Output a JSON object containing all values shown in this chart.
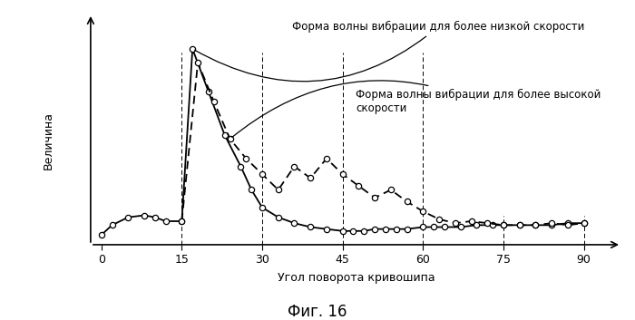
{
  "title": "Фиг. 16",
  "xlabel": "Угол поворота кривошипа",
  "ylabel": "Величина",
  "annotation1": "Форма волны вибрации для более низкой скорости",
  "annotation2": "Форма волны вибрации для более высокой\nскорости",
  "xticks": [
    0,
    15,
    30,
    45,
    60,
    75,
    90
  ],
  "xmin": -2,
  "xmax": 97,
  "ymin": 0,
  "ymax": 1.18,
  "dashed_verticals": [
    15,
    30,
    45,
    60,
    75,
    90
  ],
  "solid_x": [
    0,
    2,
    5,
    8,
    10,
    12,
    15,
    17,
    20,
    23,
    26,
    28,
    30,
    33,
    36,
    39,
    42,
    45,
    47,
    49,
    51,
    53,
    55,
    57,
    60,
    62,
    64,
    67,
    70,
    73,
    75,
    78,
    81,
    84,
    87,
    90
  ],
  "solid_y": [
    0.05,
    0.1,
    0.14,
    0.15,
    0.14,
    0.12,
    0.12,
    1.0,
    0.78,
    0.56,
    0.4,
    0.28,
    0.19,
    0.14,
    0.11,
    0.09,
    0.08,
    0.07,
    0.07,
    0.07,
    0.08,
    0.08,
    0.08,
    0.08,
    0.09,
    0.09,
    0.09,
    0.09,
    0.1,
    0.1,
    0.1,
    0.1,
    0.1,
    0.1,
    0.11,
    0.11
  ],
  "dashed_x": [
    15,
    18,
    21,
    24,
    27,
    30,
    33,
    36,
    39,
    42,
    45,
    48,
    51,
    54,
    57,
    60,
    63,
    66,
    69,
    72,
    75,
    78,
    81,
    84,
    87,
    90
  ],
  "dashed_y": [
    0.12,
    0.93,
    0.73,
    0.54,
    0.44,
    0.36,
    0.28,
    0.4,
    0.34,
    0.44,
    0.36,
    0.3,
    0.24,
    0.28,
    0.22,
    0.17,
    0.13,
    0.11,
    0.12,
    0.11,
    0.1,
    0.1,
    0.1,
    0.11,
    0.1,
    0.11
  ],
  "background_color": "#ffffff",
  "line_color": "#000000"
}
